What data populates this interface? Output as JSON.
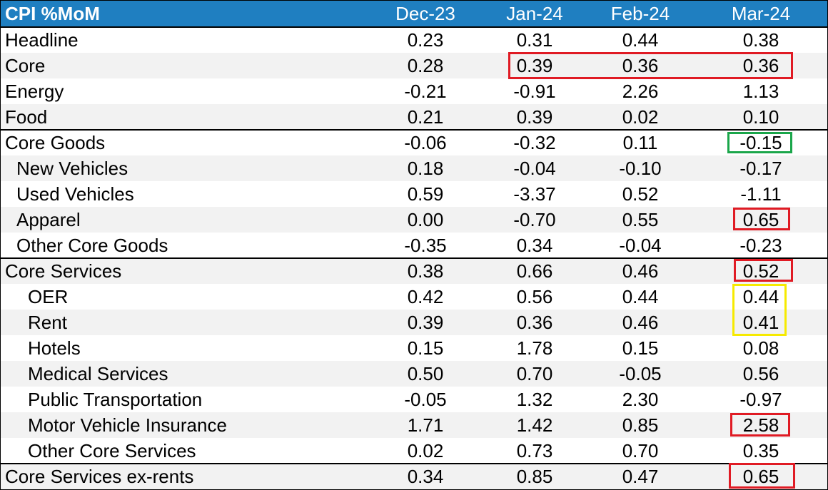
{
  "table": {
    "title": "CPI %MoM",
    "columns": [
      "Dec-23",
      "Jan-24",
      "Feb-24",
      "Mar-24"
    ],
    "rows": [
      {
        "label": "Headline",
        "values": [
          "0.23",
          "0.31",
          "0.44",
          "0.38"
        ]
      },
      {
        "label": "Core",
        "values": [
          "0.28",
          "0.39",
          "0.36",
          "0.36"
        ]
      },
      {
        "label": "Energy",
        "values": [
          "-0.21",
          "-0.91",
          "2.26",
          "1.13"
        ]
      },
      {
        "label": "Food",
        "values": [
          "0.21",
          "0.39",
          "0.02",
          "0.10"
        ]
      },
      {
        "label": "Core Goods",
        "values": [
          "-0.06",
          "-0.32",
          "0.11",
          "-0.15"
        ]
      },
      {
        "label": "New Vehicles",
        "values": [
          "0.18",
          "-0.04",
          "-0.10",
          "-0.17"
        ]
      },
      {
        "label": "Used Vehicles",
        "values": [
          "0.59",
          "-3.37",
          "0.52",
          "-1.11"
        ]
      },
      {
        "label": "Apparel",
        "values": [
          "0.00",
          "-0.70",
          "0.55",
          "0.65"
        ]
      },
      {
        "label": "Other Core Goods",
        "values": [
          "-0.35",
          "0.34",
          "-0.04",
          "-0.23"
        ]
      },
      {
        "label": "Core Services",
        "values": [
          "0.38",
          "0.66",
          "0.46",
          "0.52"
        ]
      },
      {
        "label": "OER",
        "values": [
          "0.42",
          "0.56",
          "0.44",
          "0.44"
        ]
      },
      {
        "label": "Rent",
        "values": [
          "0.39",
          "0.36",
          "0.46",
          "0.41"
        ]
      },
      {
        "label": "Hotels",
        "values": [
          "0.15",
          "1.78",
          "0.15",
          "0.08"
        ]
      },
      {
        "label": "Medical Services",
        "values": [
          "0.50",
          "0.70",
          "-0.05",
          "0.56"
        ]
      },
      {
        "label": "Public Transportation",
        "values": [
          "-0.05",
          "1.32",
          "2.30",
          "-0.97"
        ]
      },
      {
        "label": "Motor Vehicle Insurance",
        "values": [
          "1.71",
          "1.42",
          "0.85",
          "2.58"
        ]
      },
      {
        "label": "Other Core Services",
        "values": [
          "0.02",
          "0.73",
          "0.70",
          "0.35"
        ]
      },
      {
        "label": "Core Services ex-rents",
        "values": [
          "0.34",
          "0.85",
          "0.47",
          "0.65"
        ]
      }
    ]
  },
  "colors": {
    "header_background": "#1f7fc1",
    "header_text": "#ffffff",
    "highlight_red": "#e01b24",
    "highlight_green": "#1aa64a",
    "highlight_yellow": "#f6ea00",
    "row_shade": "#f2f2f2"
  }
}
